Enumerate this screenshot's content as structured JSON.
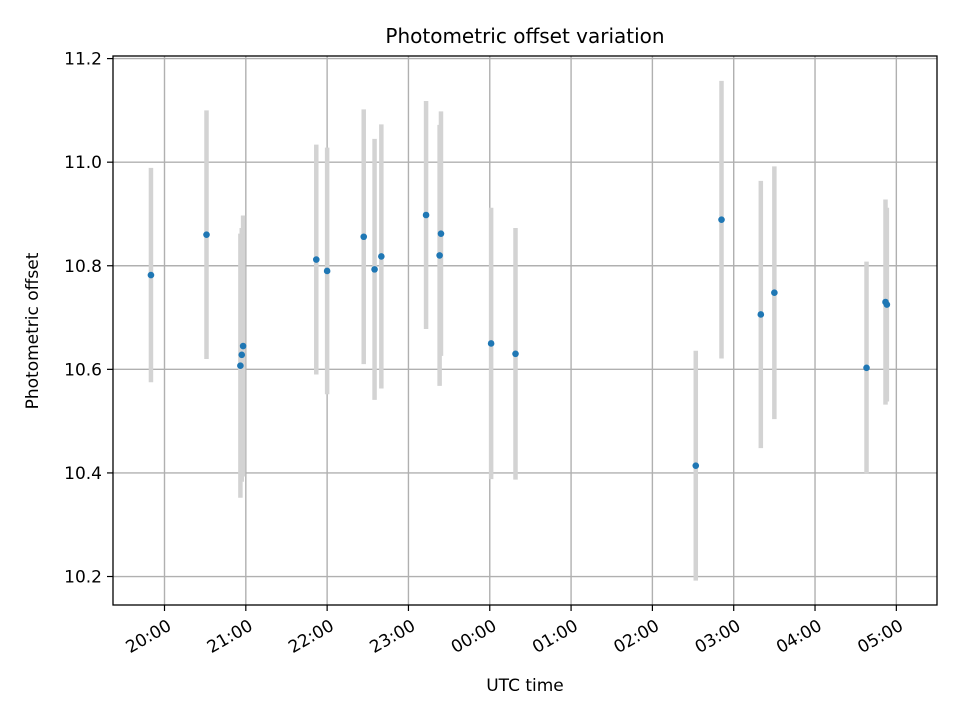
{
  "chart_data": {
    "type": "scatter",
    "title": "Photometric offset variation",
    "xlabel": "UTC time",
    "ylabel": "Photometric offset",
    "grid": true,
    "x_tick_labels": [
      "20:00",
      "21:00",
      "22:00",
      "23:00",
      "00:00",
      "01:00",
      "02:00",
      "03:00",
      "04:00",
      "05:00"
    ],
    "x_range": [
      "19:22",
      "05:30"
    ],
    "ylim": [
      10.145,
      11.205
    ],
    "y_ticks": [
      10.2,
      10.4,
      10.6,
      10.8,
      11.0,
      11.2
    ],
    "colors": {
      "point": "#1f77b4",
      "error_bar": "#d3d3d3",
      "grid": "#b0b0b0"
    },
    "points": [
      {
        "t": "19:50",
        "y": 10.782,
        "err": 0.207
      },
      {
        "t": "20:31",
        "y": 10.86,
        "err": 0.24
      },
      {
        "t": "20:56",
        "y": 10.607,
        "err": 0.255
      },
      {
        "t": "20:57",
        "y": 10.628,
        "err": 0.245
      },
      {
        "t": "20:58",
        "y": 10.645,
        "err": 0.252
      },
      {
        "t": "21:52",
        "y": 10.812,
        "err": 0.222
      },
      {
        "t": "22:00",
        "y": 10.79,
        "err": 0.238
      },
      {
        "t": "22:27",
        "y": 10.856,
        "err": 0.246
      },
      {
        "t": "22:35",
        "y": 10.793,
        "err": 0.252
      },
      {
        "t": "22:40",
        "y": 10.818,
        "err": 0.255
      },
      {
        "t": "23:13",
        "y": 10.898,
        "err": 0.22
      },
      {
        "t": "23:23",
        "y": 10.82,
        "err": 0.252
      },
      {
        "t": "23:24",
        "y": 10.862,
        "err": 0.236
      },
      {
        "t": "00:01",
        "y": 10.65,
        "err": 0.262
      },
      {
        "t": "00:19",
        "y": 10.63,
        "err": 0.243
      },
      {
        "t": "02:32",
        "y": 10.414,
        "err": 0.222
      },
      {
        "t": "02:51",
        "y": 10.889,
        "err": 0.268
      },
      {
        "t": "03:20",
        "y": 10.706,
        "err": 0.258
      },
      {
        "t": "03:30",
        "y": 10.748,
        "err": 0.244
      },
      {
        "t": "04:38",
        "y": 10.603,
        "err": 0.205
      },
      {
        "t": "04:52",
        "y": 10.73,
        "err": 0.198
      },
      {
        "t": "04:53",
        "y": 10.725,
        "err": 0.187
      }
    ]
  }
}
